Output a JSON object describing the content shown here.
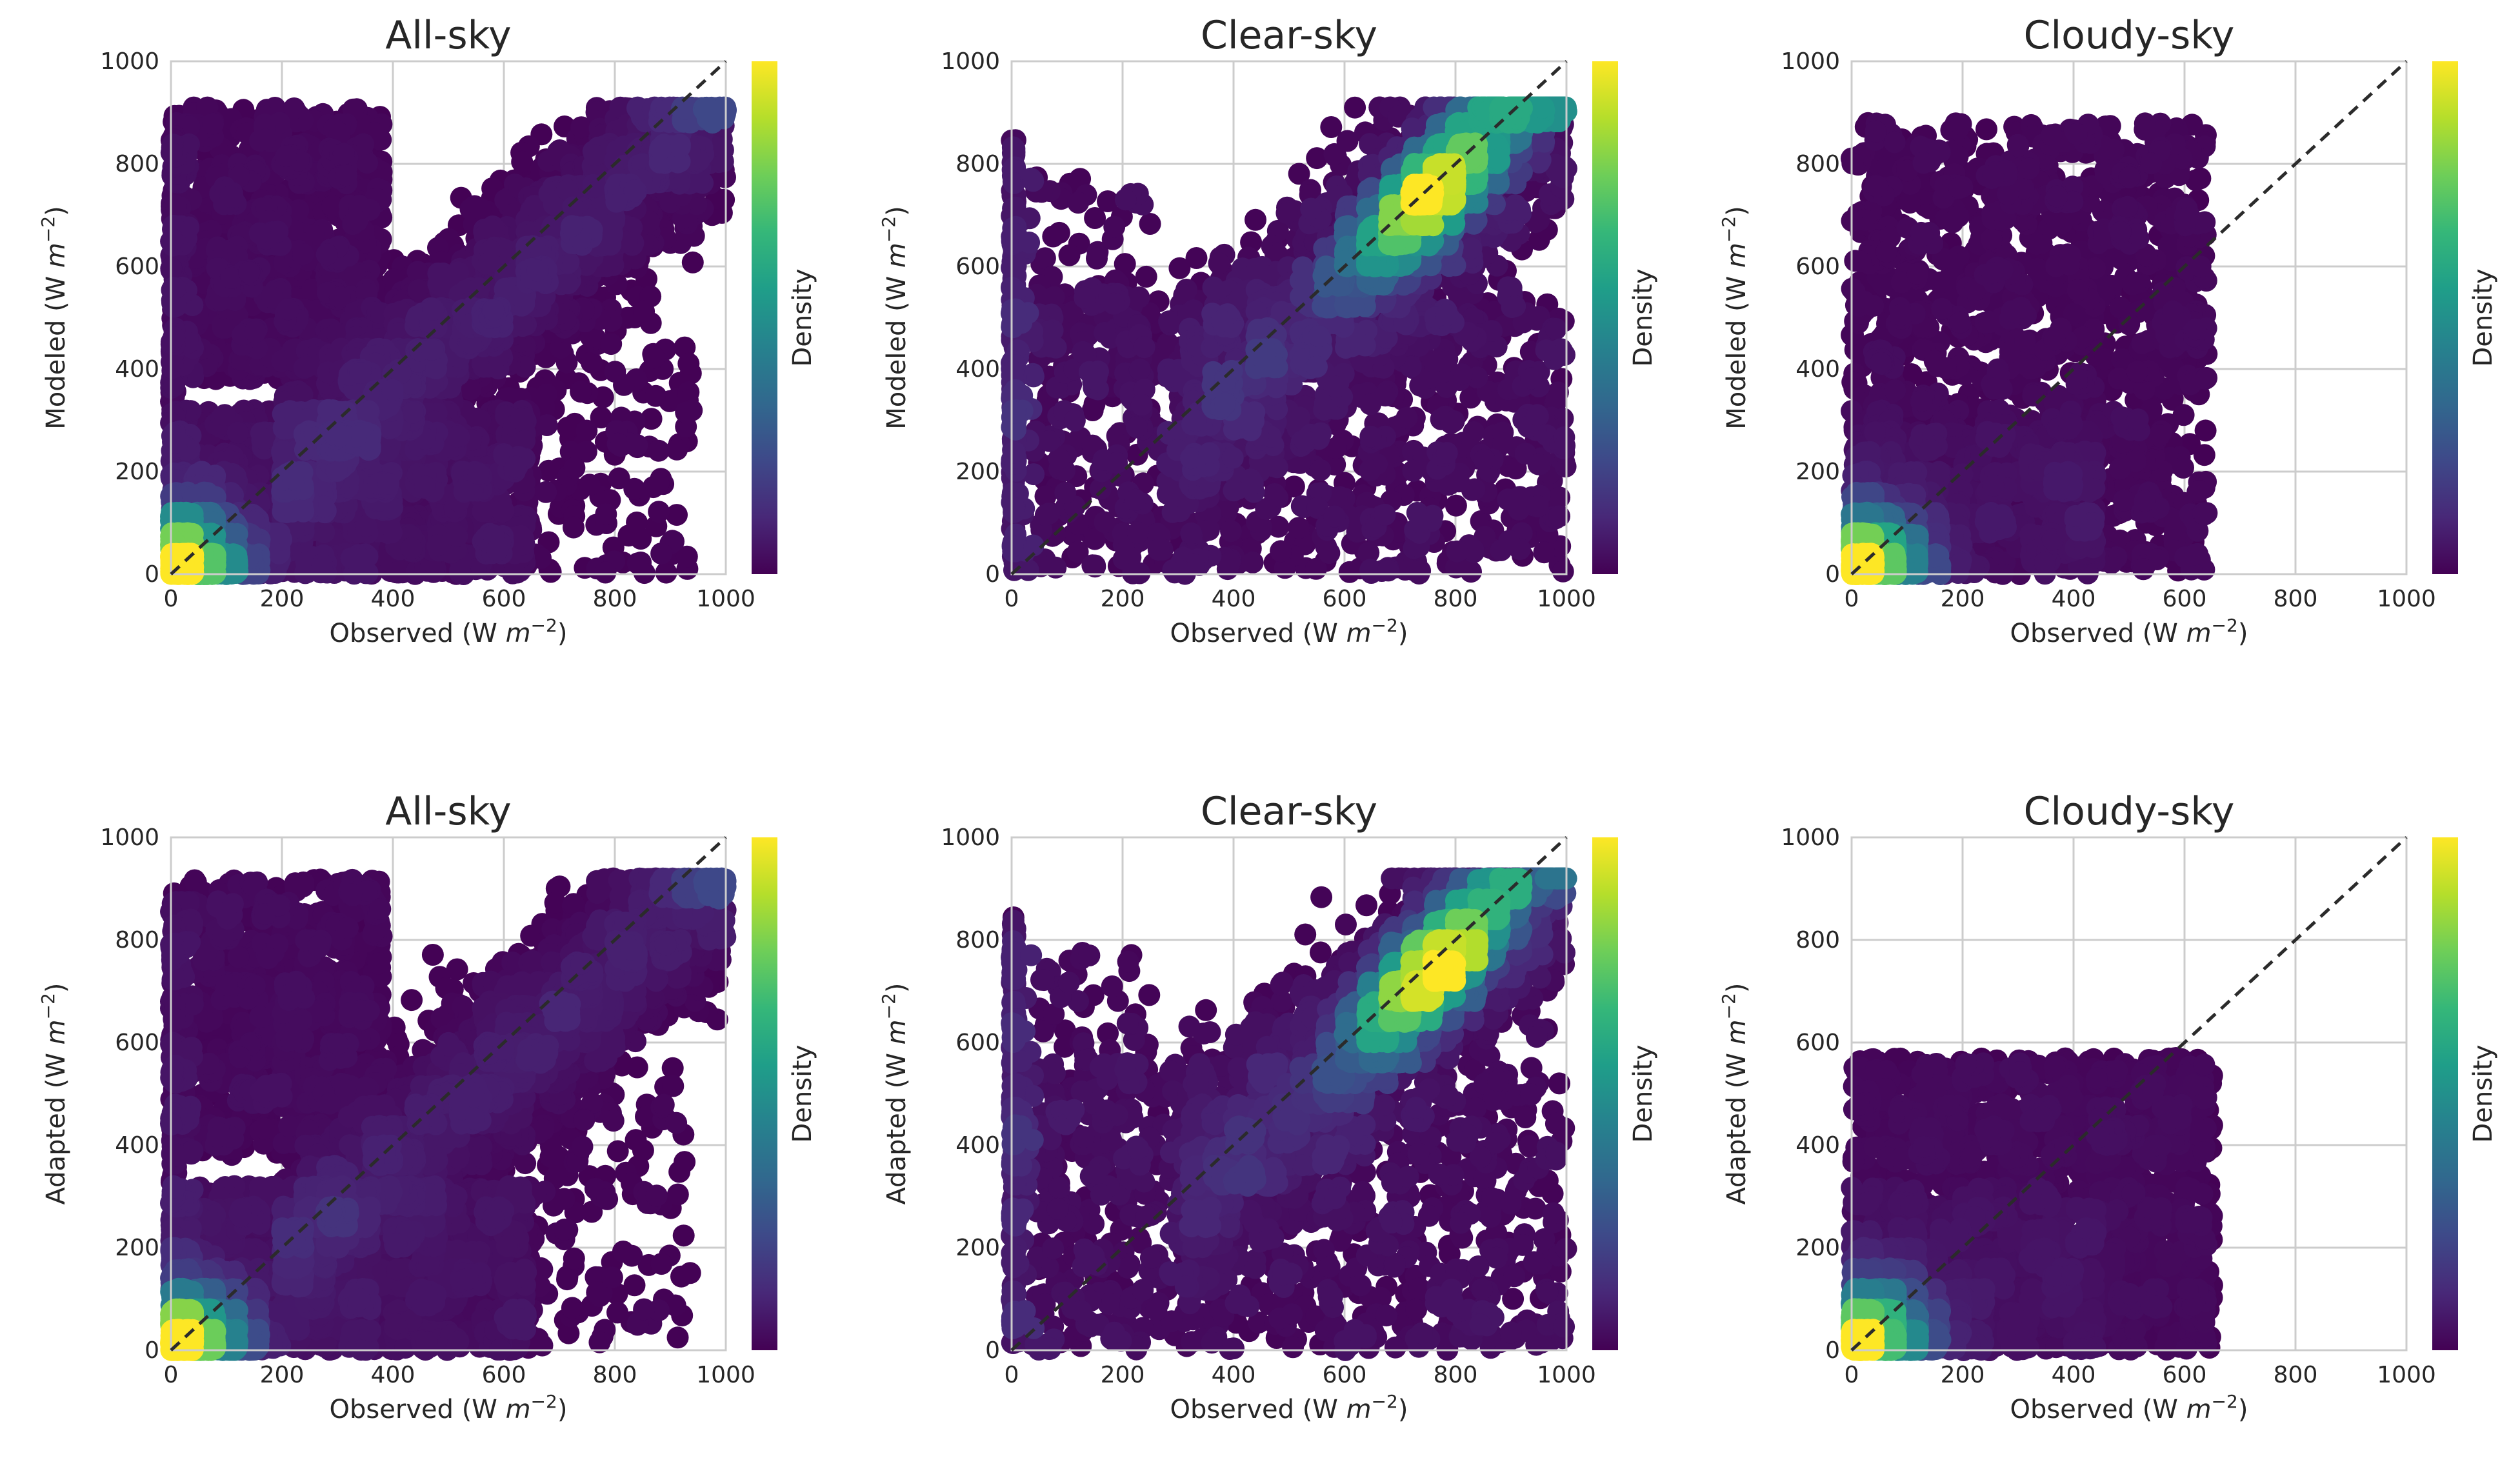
{
  "chart_data": [
    {
      "type": "scatter",
      "title": "All-sky",
      "xlabel": "Observed (W m⁻²)",
      "ylabel": "Modeled (W m⁻²)",
      "colorbar_label": "Density",
      "xlim": [
        0,
        1000
      ],
      "ylim": [
        0,
        1000
      ],
      "xticks": [
        "0",
        "200",
        "400",
        "600",
        "800",
        "1000"
      ],
      "yticks": [
        "0",
        "200",
        "400",
        "600",
        "800",
        "1000"
      ],
      "regime": "all",
      "ymax": 910,
      "xmax_obs": 1000
    },
    {
      "type": "scatter",
      "title": "Clear-sky",
      "xlabel": "Observed (W m⁻²)",
      "ylabel": "Modeled (W m⁻²)",
      "colorbar_label": "Density",
      "xlim": [
        0,
        1000
      ],
      "ylim": [
        0,
        1000
      ],
      "xticks": [
        "0",
        "200",
        "400",
        "600",
        "800",
        "1000"
      ],
      "yticks": [
        "0",
        "200",
        "400",
        "600",
        "800",
        "1000"
      ],
      "regime": "clear",
      "ymax": 910,
      "xmax_obs": 1000
    },
    {
      "type": "scatter",
      "title": "Cloudy-sky",
      "xlabel": "Observed (W m⁻²)",
      "ylabel": "Modeled (W m⁻²)",
      "colorbar_label": "Density",
      "xlim": [
        0,
        1000
      ],
      "ylim": [
        0,
        1000
      ],
      "xticks": [
        "0",
        "200",
        "400",
        "600",
        "800",
        "1000"
      ],
      "yticks": [
        "0",
        "200",
        "400",
        "600",
        "800",
        "1000"
      ],
      "regime": "cloudy",
      "ymax": 880,
      "xmax_obs": 680
    },
    {
      "type": "scatter",
      "title": "All-sky",
      "xlabel": "Observed (W m⁻²)",
      "ylabel": "Adapted (W m⁻²)",
      "colorbar_label": "Density",
      "xlim": [
        0,
        1000
      ],
      "ylim": [
        0,
        1000
      ],
      "xticks": [
        "0",
        "200",
        "400",
        "600",
        "800",
        "1000"
      ],
      "yticks": [
        "0",
        "200",
        "400",
        "600",
        "800",
        "1000"
      ],
      "regime": "all",
      "ymax": 920,
      "xmax_obs": 1000
    },
    {
      "type": "scatter",
      "title": "Clear-sky",
      "xlabel": "Observed (W m⁻²)",
      "ylabel": "Adapted (W m⁻²)",
      "colorbar_label": "Density",
      "xlim": [
        0,
        1000
      ],
      "ylim": [
        0,
        1000
      ],
      "xticks": [
        "0",
        "200",
        "400",
        "600",
        "800",
        "1000"
      ],
      "yticks": [
        "0",
        "200",
        "400",
        "600",
        "800",
        "1000"
      ],
      "regime": "clear",
      "ymax": 920,
      "xmax_obs": 1000
    },
    {
      "type": "scatter",
      "title": "Cloudy-sky",
      "xlabel": "Observed (W m⁻²)",
      "ylabel": "Adapted (W m⁻²)",
      "colorbar_label": "Density",
      "xlim": [
        0,
        1000
      ],
      "ylim": [
        0,
        1000
      ],
      "xticks": [
        "0",
        "200",
        "400",
        "600",
        "800",
        "1000"
      ],
      "yticks": [
        "0",
        "200",
        "400",
        "600",
        "800",
        "1000"
      ],
      "regime": "cloudy",
      "ymax": 570,
      "xmax_obs": 690
    }
  ],
  "colors": {
    "viridis": [
      "#440154",
      "#482878",
      "#3e4989",
      "#31688e",
      "#26828e",
      "#1f9e89",
      "#35b779",
      "#6ece58",
      "#b5de2b",
      "#fde725"
    ],
    "diagonal": "#2b2b2b",
    "grid": "#cccccc"
  }
}
